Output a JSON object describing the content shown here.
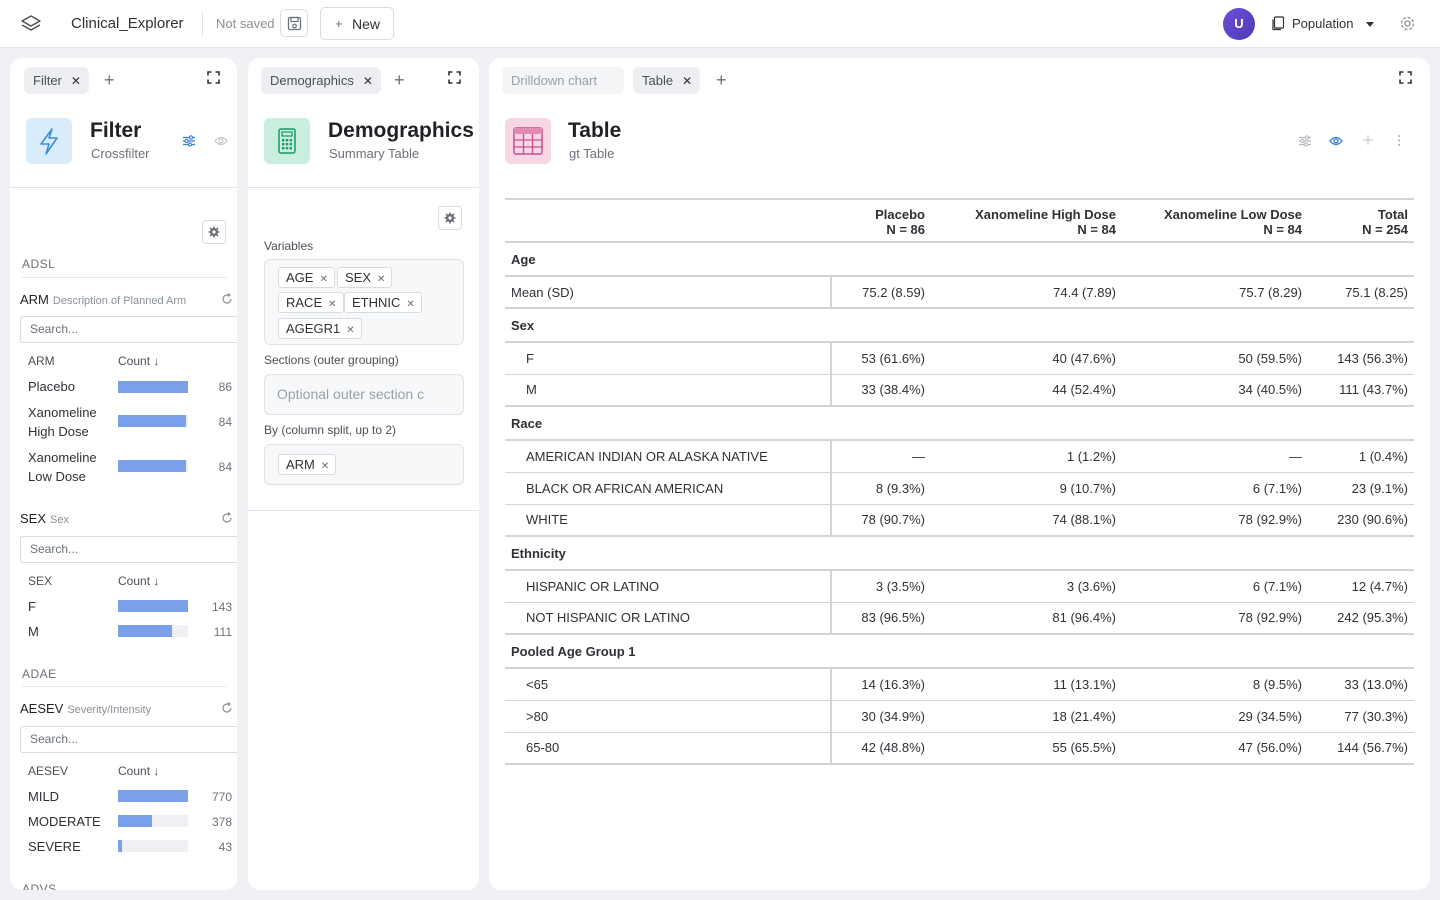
{
  "app": {
    "name": "Clinical_Explorer",
    "save_status": "Not saved",
    "new_label": "New",
    "avatar_initial": "U",
    "population_label": "Population"
  },
  "filter_panel": {
    "tab": "Filter",
    "title": "Filter",
    "subtitle": "Crossfilter",
    "sections": [
      {
        "dataset": "ADSL",
        "filters": [
          {
            "name": "ARM",
            "desc": "Description of Planned Arm",
            "search_placeholder": "Search...",
            "col_label": "ARM",
            "count_label": "Count ↓",
            "rows": [
              {
                "label": "Placebo",
                "count": "86",
                "value": 86
              },
              {
                "label": "Xanomeline High Dose",
                "count": "84",
                "value": 84
              },
              {
                "label": "Xanomeline Low Dose",
                "count": "84",
                "value": 84
              }
            ]
          },
          {
            "name": "SEX",
            "desc": "Sex",
            "search_placeholder": "Search...",
            "col_label": "SEX",
            "count_label": "Count ↓",
            "rows": [
              {
                "label": "F",
                "count": "143",
                "value": 143
              },
              {
                "label": "M",
                "count": "111",
                "value": 111
              }
            ]
          }
        ]
      },
      {
        "dataset": "ADAE",
        "filters": [
          {
            "name": "AESEV",
            "desc": "Severity/Intensity",
            "search_placeholder": "Search...",
            "col_label": "AESEV",
            "count_label": "Count ↓",
            "rows": [
              {
                "label": "MILD",
                "count": "770",
                "value": 770
              },
              {
                "label": "MODERATE",
                "count": "378",
                "value": 378
              },
              {
                "label": "SEVERE",
                "count": "43",
                "value": 43
              }
            ]
          }
        ]
      },
      {
        "dataset": "ADVS",
        "filters": []
      }
    ]
  },
  "demographics_panel": {
    "tab": "Demographics",
    "title": "Demographics",
    "subtitle": "Summary Table",
    "variables_label": "Variables",
    "variables": [
      "AGE",
      "SEX",
      "RACE",
      "ETHNIC",
      "AGEGR1"
    ],
    "sections_label": "Sections (outer grouping)",
    "sections_placeholder": "Optional outer section c",
    "by_label": "By (column split, up to 2)",
    "by": [
      "ARM"
    ]
  },
  "table_panel": {
    "tabs": [
      {
        "label": "Drilldown chart",
        "active": false
      },
      {
        "label": "Table",
        "active": true
      }
    ],
    "title": "Table",
    "subtitle": "gt Table",
    "columns": [
      {
        "name": "Placebo",
        "n": "N = 86"
      },
      {
        "name": "Xanomeline High Dose",
        "n": "N = 84"
      },
      {
        "name": "Xanomeline Low Dose",
        "n": "N = 84"
      },
      {
        "name": "Total",
        "n": "N = 254"
      }
    ],
    "groups": [
      {
        "label": "Age",
        "rows": [
          {
            "label": "Mean (SD)",
            "indent": false,
            "values": [
              "75.2 (8.59)",
              "74.4 (7.89)",
              "75.7 (8.29)",
              "75.1 (8.25)"
            ]
          }
        ]
      },
      {
        "label": "Sex",
        "rows": [
          {
            "label": "F",
            "indent": true,
            "values": [
              "53 (61.6%)",
              "40 (47.6%)",
              "50 (59.5%)",
              "143 (56.3%)"
            ]
          },
          {
            "label": "M",
            "indent": true,
            "values": [
              "33 (38.4%)",
              "44 (52.4%)",
              "34 (40.5%)",
              "111 (43.7%)"
            ]
          }
        ]
      },
      {
        "label": "Race",
        "rows": [
          {
            "label": "AMERICAN INDIAN OR ALASKA NATIVE",
            "indent": true,
            "values": [
              "—",
              "1 (1.2%)",
              "—",
              "1 (0.4%)"
            ]
          },
          {
            "label": "BLACK OR AFRICAN AMERICAN",
            "indent": true,
            "values": [
              "8 (9.3%)",
              "9 (10.7%)",
              "6 (7.1%)",
              "23 (9.1%)"
            ]
          },
          {
            "label": "WHITE",
            "indent": true,
            "values": [
              "78 (90.7%)",
              "74 (88.1%)",
              "78 (92.9%)",
              "230 (90.6%)"
            ]
          }
        ]
      },
      {
        "label": "Ethnicity",
        "rows": [
          {
            "label": "HISPANIC OR LATINO",
            "indent": true,
            "values": [
              "3 (3.5%)",
              "3 (3.6%)",
              "6 (7.1%)",
              "12 (4.7%)"
            ]
          },
          {
            "label": "NOT HISPANIC OR LATINO",
            "indent": true,
            "values": [
              "83 (96.5%)",
              "81 (96.4%)",
              "78 (92.9%)",
              "242 (95.3%)"
            ]
          }
        ]
      },
      {
        "label": "Pooled Age Group 1",
        "rows": [
          {
            "label": "<65",
            "indent": true,
            "values": [
              "14 (16.3%)",
              "11 (13.1%)",
              "8 (9.5%)",
              "33 (13.0%)"
            ]
          },
          {
            "label": ">80",
            "indent": true,
            "values": [
              "30 (34.9%)",
              "18 (21.4%)",
              "29 (34.5%)",
              "77 (30.3%)"
            ]
          },
          {
            "label": "65-80",
            "indent": true,
            "values": [
              "42 (48.8%)",
              "55 (65.5%)",
              "47 (56.0%)",
              "144 (56.7%)"
            ]
          }
        ]
      }
    ]
  },
  "colors": {
    "accent": "#3b7fd4",
    "bar_fill": "#7aa0ea",
    "avatar": "#5a43c6"
  },
  "icons": [
    "layers-icon",
    "save-icon",
    "plus-icon",
    "document-icon",
    "gear-icon",
    "expand-icon",
    "lightning-icon",
    "sliders-icon",
    "eye-icon",
    "calculator-icon",
    "table-icon",
    "refresh-icon",
    "sparkle-icon",
    "more-icon"
  ]
}
